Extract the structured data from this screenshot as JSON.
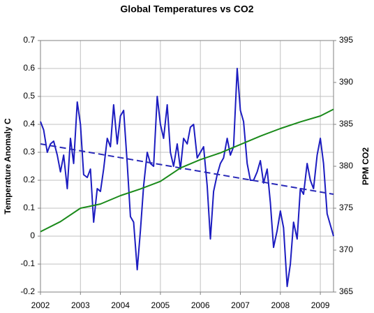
{
  "chart_data": {
    "type": "line",
    "title": "Global Temperatures vs CO2",
    "y_label": "Temperature Anomaly C",
    "y2_label": "PPM CO2",
    "xlim": [
      2002,
      2009.33
    ],
    "xticks": [
      2002,
      2003,
      2004,
      2005,
      2006,
      2007,
      2008,
      2009
    ],
    "ylim": [
      -0.2,
      0.7
    ],
    "yticks": [
      0.7,
      0.6,
      0.5,
      0.4,
      0.3,
      0.2,
      0.1,
      0,
      -0.1,
      -0.2
    ],
    "y2lim": [
      365,
      395
    ],
    "y2ticks": [
      395,
      390,
      385,
      380,
      375,
      370,
      365
    ],
    "grid": true,
    "series": [
      {
        "color": "#1c1cc0",
        "style": "solid",
        "x": [
          2002,
          2002.08,
          2002.17,
          2002.25,
          2002.33,
          2002.42,
          2002.5,
          2002.58,
          2002.67,
          2002.75,
          2002.83,
          2002.92,
          2003,
          2003.08,
          2003.17,
          2003.25,
          2003.33,
          2003.42,
          2003.5,
          2003.58,
          2003.67,
          2003.75,
          2003.83,
          2003.92,
          2004,
          2004.08,
          2004.17,
          2004.25,
          2004.33,
          2004.42,
          2004.5,
          2004.58,
          2004.67,
          2004.75,
          2004.83,
          2004.92,
          2005,
          2005.08,
          2005.17,
          2005.25,
          2005.33,
          2005.42,
          2005.5,
          2005.58,
          2005.67,
          2005.75,
          2005.83,
          2005.92,
          2006,
          2006.08,
          2006.17,
          2006.25,
          2006.33,
          2006.42,
          2006.5,
          2006.58,
          2006.67,
          2006.75,
          2006.83,
          2006.92,
          2007,
          2007.08,
          2007.17,
          2007.25,
          2007.33,
          2007.42,
          2007.5,
          2007.58,
          2007.67,
          2007.75,
          2007.83,
          2007.92,
          2008,
          2008.08,
          2008.17,
          2008.25,
          2008.33,
          2008.42,
          2008.5,
          2008.58,
          2008.67,
          2008.75,
          2008.83,
          2008.92,
          2009,
          2009.08,
          2009.17,
          2009.25,
          2009.33
        ],
        "values": [
          0.41,
          0.38,
          0.3,
          0.33,
          0.34,
          0.29,
          0.23,
          0.29,
          0.17,
          0.35,
          0.26,
          0.48,
          0.4,
          0.22,
          0.21,
          0.24,
          0.05,
          0.17,
          0.16,
          0.24,
          0.35,
          0.32,
          0.47,
          0.33,
          0.43,
          0.45,
          0.26,
          0.07,
          0.05,
          -0.12,
          0.02,
          0.18,
          0.3,
          0.26,
          0.25,
          0.5,
          0.4,
          0.35,
          0.47,
          0.3,
          0.25,
          0.33,
          0.24,
          0.35,
          0.33,
          0.39,
          0.4,
          0.28,
          0.3,
          0.32,
          0.18,
          -0.01,
          0.16,
          0.22,
          0.26,
          0.28,
          0.35,
          0.29,
          0.32,
          0.6,
          0.45,
          0.41,
          0.26,
          0.2,
          0.2,
          0.23,
          0.27,
          0.19,
          0.24,
          0.12,
          -0.04,
          0.02,
          0.09,
          0.03,
          -0.18,
          -0.1,
          0.05,
          -0.01,
          0.17,
          0.15,
          0.26,
          0.2,
          0.17,
          0.29,
          0.35,
          0.26,
          0.08,
          0.04,
          0.0
        ]
      },
      {
        "color": "#2a2ab8",
        "style": "dashed",
        "x": [
          2002,
          2009.33
        ],
        "values": [
          0.33,
          0.15
        ]
      },
      {
        "color": "#1a8a1a",
        "style": "solid",
        "axis": "y2",
        "x": [
          2002,
          2002.5,
          2003,
          2003.5,
          2004,
          2004.5,
          2005,
          2005.5,
          2006,
          2006.5,
          2007,
          2007.5,
          2008,
          2008.5,
          2009,
          2009.33
        ],
        "values": [
          372.2,
          373.4,
          375.0,
          375.5,
          376.5,
          377.3,
          378.2,
          379.8,
          380.8,
          381.6,
          382.6,
          383.6,
          384.5,
          385.3,
          386.0,
          386.8
        ]
      }
    ]
  }
}
